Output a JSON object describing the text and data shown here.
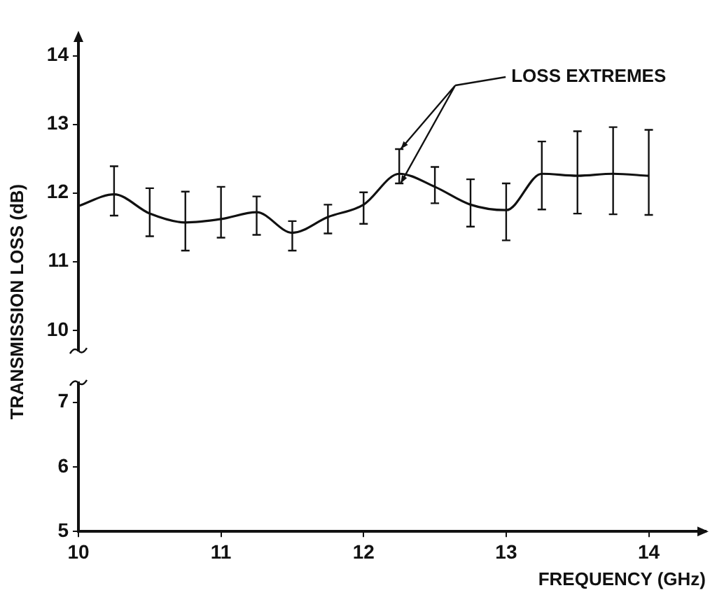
{
  "chart_data": [
    {
      "type": "line",
      "ylabel": "TRANSMISSION LOSS (dB)",
      "annotations": [
        "LOSS EXTREMES"
      ],
      "x": [
        10.0,
        10.25,
        10.5,
        10.75,
        11.0,
        11.25,
        11.5,
        11.75,
        12.0,
        12.25,
        12.5,
        12.75,
        13.0,
        13.25,
        13.5,
        13.75,
        14.0
      ],
      "series": [
        {
          "color": "#111111",
          "values": [
            11.81,
            11.98,
            11.7,
            11.57,
            11.62,
            11.72,
            11.42,
            11.65,
            11.83,
            12.28,
            12.09,
            11.83,
            11.75,
            12.28,
            12.25,
            12.28,
            12.25
          ],
          "errors": [
            null,
            [
              11.67,
              12.39
            ],
            [
              11.37,
              12.07
            ],
            [
              11.16,
              12.02
            ],
            [
              11.35,
              12.09
            ],
            [
              11.39,
              11.95
            ],
            [
              11.16,
              11.59
            ],
            [
              11.41,
              11.83
            ],
            [
              11.55,
              12.01
            ],
            [
              12.14,
              12.64
            ],
            [
              11.85,
              12.38
            ],
            [
              11.51,
              12.2
            ],
            [
              11.31,
              12.14
            ],
            [
              11.76,
              12.75
            ],
            [
              11.7,
              12.9
            ],
            [
              11.69,
              12.96
            ],
            [
              11.68,
              12.92
            ]
          ]
        }
      ],
      "ylim": [
        9.7,
        14.2
      ],
      "yticks": [
        10,
        11,
        12,
        13,
        14
      ],
      "tick_labels": "y",
      "grid": false,
      "legend": false,
      "marker": "none",
      "line_style": "solid"
    },
    {
      "type": "line",
      "xlabel": "FREQUENCY (GHz)",
      "xlim": [
        10,
        14.4
      ],
      "xticks": [
        10,
        11,
        12,
        13,
        14
      ],
      "ylim": [
        5,
        7.3
      ],
      "yticks": [
        5,
        6,
        7
      ],
      "grid": false,
      "legend": false
    }
  ]
}
